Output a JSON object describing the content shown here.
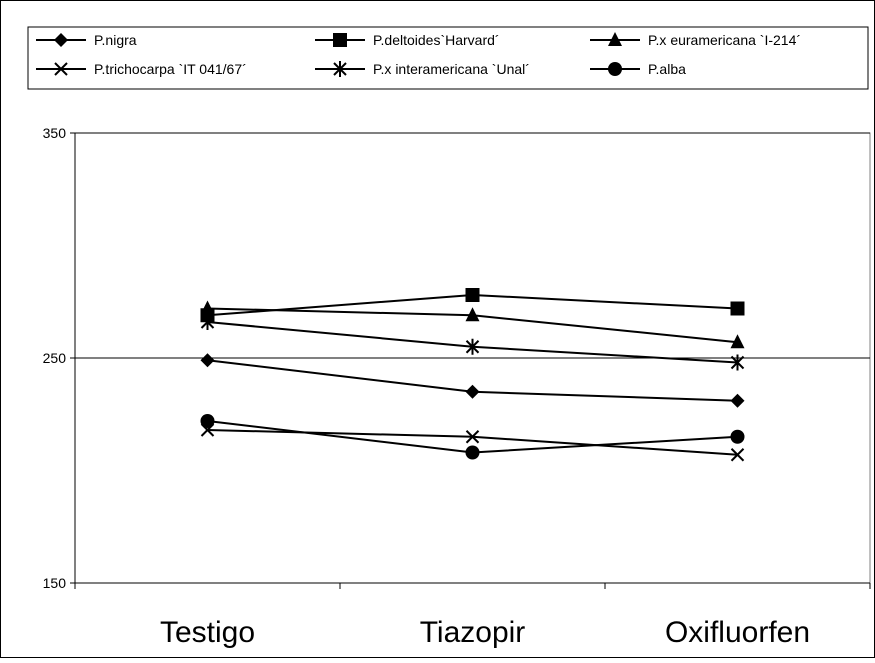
{
  "chart_data": {
    "type": "line",
    "categories": [
      "Testigo",
      "Tiazopir",
      "Oxifluorfen"
    ],
    "ylim": [
      150,
      350
    ],
    "yticks": [
      150,
      250,
      350
    ],
    "grid": true,
    "legend_position": "top",
    "title": "",
    "xlabel": "",
    "ylabel": "",
    "series": [
      {
        "name": "P.nigra",
        "marker": "diamond",
        "values": [
          249,
          235,
          231
        ]
      },
      {
        "name": "P.deltoides`Harvard´",
        "marker": "square",
        "values": [
          269,
          278,
          272
        ]
      },
      {
        "name": "P.x euramericana `I-214´",
        "marker": "triangle",
        "values": [
          272,
          269,
          257
        ]
      },
      {
        "name": "P.trichocarpa `IT 041/67´",
        "marker": "x",
        "values": [
          218,
          215,
          207
        ]
      },
      {
        "name": "P.x interamericana `Unal´",
        "marker": "asterisk",
        "values": [
          266,
          255,
          248
        ]
      },
      {
        "name": "P.alba",
        "marker": "circle",
        "values": [
          222,
          208,
          215
        ]
      }
    ]
  },
  "colors": {
    "line": "#000000",
    "background": "#ffffff"
  }
}
